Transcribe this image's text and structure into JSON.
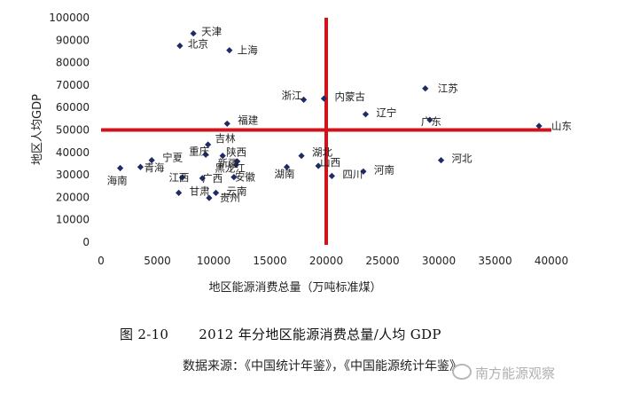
{
  "chart_data": {
    "type": "scatter",
    "xlabel": "地区能源消费总量（万吨标准煤）",
    "ylabel": "地区人均GDP",
    "xlim": [
      0,
      40000
    ],
    "ylim": [
      0,
      100000
    ],
    "xticks": [
      "0",
      "5000",
      "10000",
      "15000",
      "20000",
      "25000",
      "30000",
      "35000",
      "40000"
    ],
    "yticks": [
      "0",
      "10000",
      "20000",
      "30000",
      "40000",
      "50000",
      "60000",
      "70000",
      "80000",
      "90000",
      "100000"
    ],
    "reference_lines": {
      "x": 20000,
      "y": 50000,
      "color": "#d0141b"
    },
    "marker_color": "#1f2a66",
    "points": [
      {
        "label": "天津",
        "x": 8200,
        "y": 93000
      },
      {
        "label": "北京",
        "x": 7000,
        "y": 87500
      },
      {
        "label": "上海",
        "x": 11400,
        "y": 85500
      },
      {
        "label": "江苏",
        "x": 28800,
        "y": 68500
      },
      {
        "label": "浙江",
        "x": 18000,
        "y": 63500
      },
      {
        "label": "内蒙古",
        "x": 19800,
        "y": 64000
      },
      {
        "label": "辽宁",
        "x": 23500,
        "y": 57000
      },
      {
        "label": "广东",
        "x": 29200,
        "y": 54500
      },
      {
        "label": "山东",
        "x": 38900,
        "y": 51800
      },
      {
        "label": "福建",
        "x": 11200,
        "y": 52800
      },
      {
        "label": "吉林",
        "x": 9500,
        "y": 43500
      },
      {
        "label": "重庆",
        "x": 9300,
        "y": 39000
      },
      {
        "label": "陕西",
        "x": 10800,
        "y": 38500
      },
      {
        "label": "湖北",
        "x": 17800,
        "y": 38500
      },
      {
        "label": "黑龙江",
        "x": 12000,
        "y": 34500
      },
      {
        "label": "宁夏",
        "x": 4500,
        "y": 36500
      },
      {
        "label": "海南",
        "x": 1700,
        "y": 33000
      },
      {
        "label": "青海",
        "x": 3500,
        "y": 33500
      },
      {
        "label": "新疆",
        "x": 12100,
        "y": 36000
      },
      {
        "label": "湖南",
        "x": 16500,
        "y": 33500
      },
      {
        "label": "河北",
        "x": 30200,
        "y": 36500
      },
      {
        "label": "山西",
        "x": 19300,
        "y": 34000
      },
      {
        "label": "河南",
        "x": 23300,
        "y": 31500
      },
      {
        "label": "四川",
        "x": 20500,
        "y": 29500
      },
      {
        "label": "安徽",
        "x": 11800,
        "y": 29000
      },
      {
        "label": "江西",
        "x": 7200,
        "y": 28800
      },
      {
        "label": "广西",
        "x": 9000,
        "y": 28500
      },
      {
        "label": "甘肃",
        "x": 6900,
        "y": 22000
      },
      {
        "label": "云南",
        "x": 10200,
        "y": 22000
      },
      {
        "label": "贵州",
        "x": 9600,
        "y": 19700
      }
    ]
  },
  "caption": {
    "figure_number": "图 2-10",
    "title": "2012 年分地区能源消费总量/人均 GDP"
  },
  "source_line": "数据来源：《中国统计年鉴》，《中国能源统计年鉴》",
  "watermark": "南方能源观察"
}
